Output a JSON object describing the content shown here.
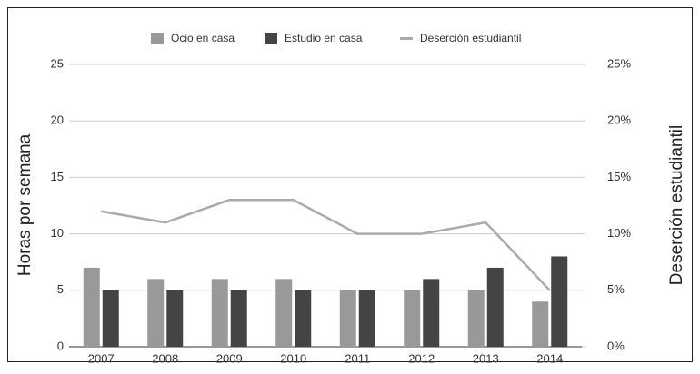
{
  "chart_data": {
    "type": "bar",
    "y_label": "Horas por semana",
    "y2_label": "Deserción estudiantil",
    "categories": [
      "2007",
      "2008",
      "2009",
      "2010",
      "2011",
      "2012",
      "2013",
      "2014"
    ],
    "series": [
      {
        "name": "Ocio en casa",
        "type": "bar",
        "color": "#999999",
        "values": [
          7,
          6,
          6,
          6,
          5,
          5,
          5,
          4
        ]
      },
      {
        "name": "Estudio en casa",
        "type": "bar",
        "color": "#444444",
        "values": [
          5,
          5,
          5,
          5,
          5,
          6,
          7,
          8
        ]
      },
      {
        "name": "Deserción estudiantil",
        "type": "line",
        "axis": "y2",
        "color": "#aaaaaa",
        "values": [
          12,
          11,
          13,
          13,
          10,
          10,
          11,
          5
        ]
      }
    ],
    "ylim": [
      0,
      25
    ],
    "yticks": [
      0,
      5,
      10,
      15,
      20,
      25
    ],
    "y2lim": [
      0,
      25
    ],
    "y2ticks": [
      {
        "value": 0,
        "label": "0%"
      },
      {
        "value": 5,
        "label": "5%"
      },
      {
        "value": 10,
        "label": "10%"
      },
      {
        "value": 15,
        "label": "15%"
      },
      {
        "value": 20,
        "label": "20%"
      },
      {
        "value": 25,
        "label": "25%"
      }
    ],
    "grid": true,
    "legend": "top"
  }
}
